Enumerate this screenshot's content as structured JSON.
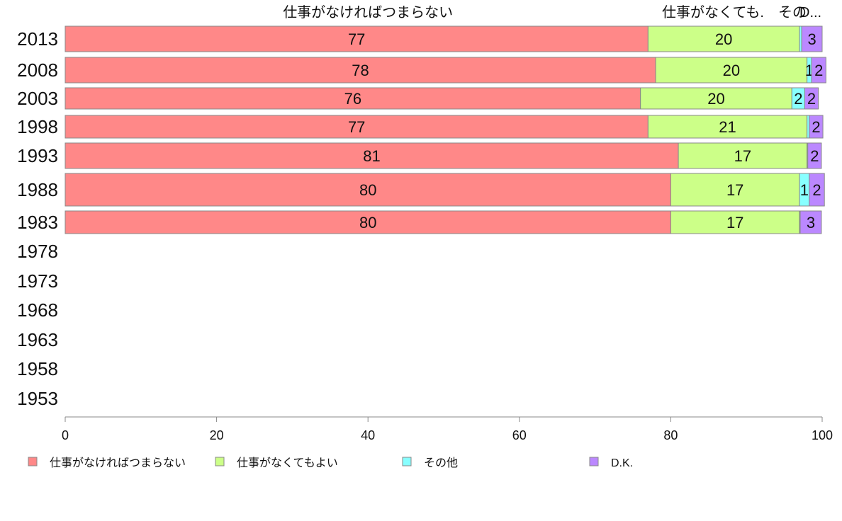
{
  "chart_data": {
    "type": "bar",
    "orientation": "horizontal",
    "stacked": true,
    "categories": [
      "2013",
      "2008",
      "2003",
      "1998",
      "1993",
      "1988",
      "1983",
      "1978",
      "1973",
      "1968",
      "1963",
      "1958",
      "1953"
    ],
    "series": [
      {
        "name": "仕事がなければつまらない",
        "color": "#ff8888",
        "values": [
          77,
          78,
          76,
          77,
          81,
          80,
          80,
          null,
          null,
          null,
          null,
          null,
          null
        ]
      },
      {
        "name": "仕事がなくてもよい",
        "color": "#ccff88",
        "values": [
          20,
          20,
          20,
          21,
          17,
          17,
          17,
          null,
          null,
          null,
          null,
          null,
          null
        ]
      },
      {
        "name": "その他",
        "color": "#88ffff",
        "values": [
          0.3,
          0.6,
          1.7,
          0.3,
          0.1,
          1.3,
          0.1,
          null,
          null,
          null,
          null,
          null,
          null
        ]
      },
      {
        "name": "D.K.",
        "color": "#bb88ff",
        "values": [
          2.7,
          1.9,
          1.8,
          1.8,
          1.8,
          2.0,
          2.8,
          null,
          null,
          null,
          null,
          null,
          null
        ]
      }
    ],
    "data_labels": [
      [
        "77",
        "20",
        "",
        "3"
      ],
      [
        "78",
        "20",
        "1",
        "2"
      ],
      [
        "76",
        "20",
        "2",
        "2"
      ],
      [
        "77",
        "21",
        "",
        "2"
      ],
      [
        "81",
        "17",
        "",
        "2"
      ],
      [
        "80",
        "17",
        "1",
        "2"
      ],
      [
        "80",
        "17",
        "",
        "3"
      ]
    ],
    "top_labels": [
      "仕事がなければつまらない",
      "仕事がなくても.",
      "その",
      "D..."
    ],
    "xlim": [
      0,
      100
    ],
    "xticks": [
      0,
      20,
      40,
      60,
      80,
      100
    ],
    "legend_position": "bottom",
    "grid": false
  }
}
